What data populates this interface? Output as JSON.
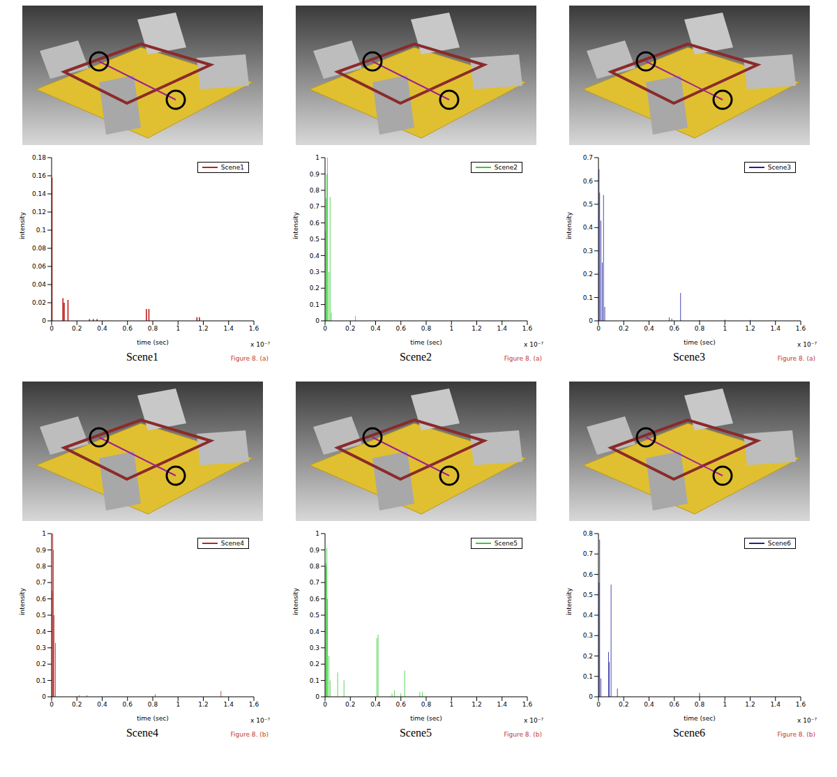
{
  "chart_data": [
    {
      "type": "bar",
      "title": "Scene1",
      "annotations": [
        "x 10⁻⁷",
        "Figure 8. (a)"
      ],
      "x_label": "time (sec)",
      "y_label": "intensity",
      "x": [
        0.003,
        0.09,
        0.1,
        0.13,
        0.3,
        0.33,
        0.36,
        0.75,
        0.77,
        1.15,
        1.17
      ],
      "series": [
        {
          "name": "Scene1",
          "color": "#c0201f",
          "values": [
            0.158,
            0.025,
            0.02,
            0.023,
            0.002,
            0.002,
            0.002,
            0.013,
            0.013,
            0.004,
            0.004
          ]
        }
      ],
      "xlim": [
        0,
        1.6
      ],
      "xticks": [
        0,
        0.2,
        0.4,
        0.6,
        0.8,
        1,
        1.2,
        1.4,
        1.6
      ],
      "ylim": [
        0,
        0.18
      ],
      "yticks": [
        0,
        0.02,
        0.04,
        0.06,
        0.08,
        0.1,
        0.12,
        0.14,
        0.16,
        0.18
      ],
      "legend": "upper right"
    },
    {
      "type": "bar",
      "title": "Scene2",
      "annotations": [
        "x 10⁻⁷",
        "Figure 8. (a)"
      ],
      "x_label": "time (sec)",
      "y_label": "intensity",
      "x": [
        0.005,
        0.01,
        0.015,
        0.02,
        0.03,
        0.04,
        0.05,
        0.24,
        1.4
      ],
      "series": [
        {
          "name": "Scene2",
          "color": "#33cc33",
          "values": [
            0.55,
            0.75,
            0.9,
            1.0,
            0.3,
            0.76,
            0.05,
            0.03,
            0.005
          ]
        }
      ],
      "xlim": [
        0,
        1.6
      ],
      "xticks": [
        0,
        0.2,
        0.4,
        0.6,
        0.8,
        1,
        1.2,
        1.4,
        1.6
      ],
      "ylim": [
        0,
        1
      ],
      "yticks": [
        0,
        0.1,
        0.2,
        0.3,
        0.4,
        0.5,
        0.6,
        0.7,
        0.8,
        0.9,
        1
      ],
      "legend": "upper right"
    },
    {
      "type": "bar",
      "title": "Scene3",
      "annotations": [
        "x 10⁻⁷",
        "Figure 8. (a)"
      ],
      "x_label": "time (sec)",
      "y_label": "intensity",
      "x": [
        0.005,
        0.01,
        0.02,
        0.03,
        0.04,
        0.05,
        0.56,
        0.58,
        0.65,
        0.8,
        1.0,
        1.2
      ],
      "series": [
        {
          "name": "Scene3",
          "color": "#1f1fa0",
          "values": [
            0.65,
            0.55,
            0.43,
            0.25,
            0.54,
            0.06,
            0.015,
            0.01,
            0.12,
            0.003,
            0.005,
            0.004
          ]
        }
      ],
      "xlim": [
        0,
        1.6
      ],
      "xticks": [
        0,
        0.2,
        0.4,
        0.6,
        0.8,
        1,
        1.2,
        1.4,
        1.6
      ],
      "ylim": [
        0,
        0.7
      ],
      "yticks": [
        0,
        0.1,
        0.2,
        0.3,
        0.4,
        0.5,
        0.6,
        0.7
      ],
      "legend": "upper right"
    },
    {
      "type": "bar",
      "title": "Scene4",
      "annotations": [
        "x 10⁻⁷",
        "Figure 8. (b)"
      ],
      "x_label": "time (sec)",
      "y_label": "intensity",
      "x": [
        0.005,
        0.01,
        0.015,
        0.02,
        0.03,
        0.22,
        0.28,
        0.82,
        1.34
      ],
      "series": [
        {
          "name": "Scene4",
          "color": "#c0201f",
          "values": [
            0.65,
            1.0,
            0.9,
            0.5,
            0.33,
            0.01,
            0.01,
            0.015,
            0.035
          ]
        }
      ],
      "xlim": [
        0,
        1.6
      ],
      "xticks": [
        0,
        0.2,
        0.4,
        0.6,
        0.8,
        1,
        1.2,
        1.4,
        1.6
      ],
      "ylim": [
        0,
        1
      ],
      "yticks": [
        0,
        0.1,
        0.2,
        0.3,
        0.4,
        0.5,
        0.6,
        0.7,
        0.8,
        0.9,
        1
      ],
      "legend": "upper right"
    },
    {
      "type": "bar",
      "title": "Scene5",
      "annotations": [
        "x 10⁻⁷",
        "Figure 8. (b)"
      ],
      "x_label": "time (sec)",
      "y_label": "intensity",
      "x": [
        0.005,
        0.01,
        0.015,
        0.02,
        0.03,
        0.04,
        0.1,
        0.15,
        0.41,
        0.42,
        0.53,
        0.55,
        0.6,
        0.63,
        0.75,
        0.77
      ],
      "series": [
        {
          "name": "Scene5",
          "color": "#33cc33",
          "values": [
            0.82,
            0.8,
            0.91,
            0.6,
            0.25,
            0.1,
            0.15,
            0.1,
            0.36,
            0.38,
            0.02,
            0.04,
            0.02,
            0.16,
            0.03,
            0.03
          ]
        }
      ],
      "xlim": [
        0,
        1.6
      ],
      "xticks": [
        0,
        0.2,
        0.4,
        0.6,
        0.8,
        1,
        1.2,
        1.4,
        1.6
      ],
      "ylim": [
        0,
        1
      ],
      "yticks": [
        0,
        0.1,
        0.2,
        0.3,
        0.4,
        0.5,
        0.6,
        0.7,
        0.8,
        0.9,
        1
      ],
      "legend": "upper right"
    },
    {
      "type": "bar",
      "title": "Scene6",
      "annotations": [
        "x 10⁻⁷",
        "Figure 8. (b)"
      ],
      "x_label": "time (sec)",
      "y_label": "intensity",
      "x": [
        0.005,
        0.01,
        0.02,
        0.08,
        0.085,
        0.1,
        0.15,
        0.8
      ],
      "series": [
        {
          "name": "Scene6",
          "color": "#1f1fa0",
          "values": [
            0.56,
            0.77,
            0.09,
            0.22,
            0.17,
            0.55,
            0.04,
            0.02
          ]
        }
      ],
      "xlim": [
        0,
        1.6
      ],
      "xticks": [
        0,
        0.2,
        0.4,
        0.6,
        0.8,
        1,
        1.2,
        1.4,
        1.6
      ],
      "ylim": [
        0,
        0.8
      ],
      "yticks": [
        0,
        0.1,
        0.2,
        0.3,
        0.4,
        0.5,
        0.6,
        0.7,
        0.8
      ],
      "legend": "upper right"
    }
  ]
}
